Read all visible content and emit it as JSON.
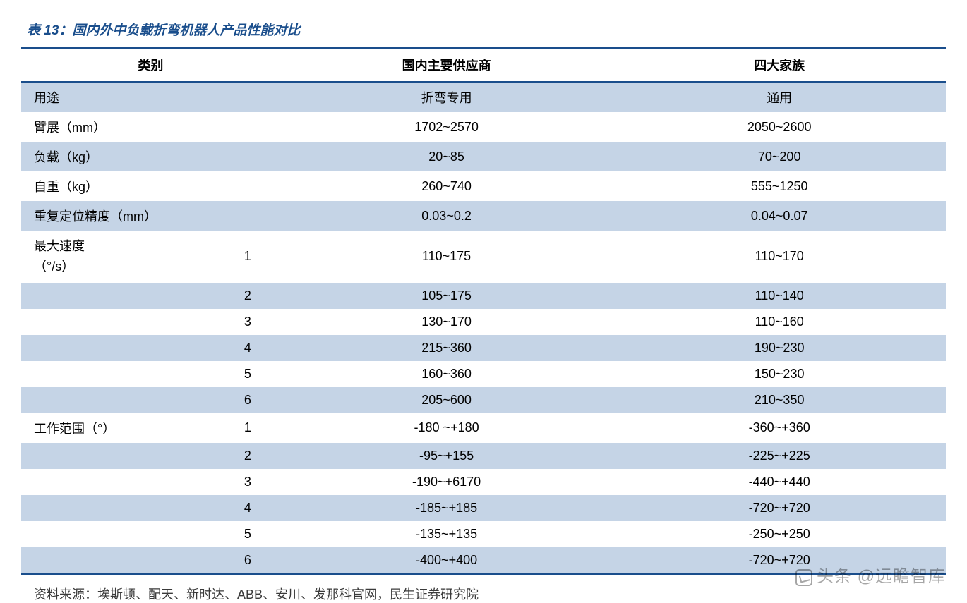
{
  "title": "表 13：国内外中负载折弯机器人产品性能对比",
  "columns": [
    "类别",
    "国内主要供应商",
    "四大家族"
  ],
  "band_colors": {
    "blue": "#c5d4e6",
    "white": "#ffffff"
  },
  "title_color": "#1a4e8c",
  "border_color": "#1a4e8c",
  "rows": [
    {
      "label": "用途",
      "sub": "",
      "c1": "折弯专用",
      "c2": "通用",
      "band": "blue"
    },
    {
      "label": "臂展（mm）",
      "sub": "",
      "c1": "1702~2570",
      "c2": "2050~2600",
      "band": "white"
    },
    {
      "label": "负载（kg）",
      "sub": "",
      "c1": "20~85",
      "c2": "70~200",
      "band": "blue"
    },
    {
      "label": "自重（kg）",
      "sub": "",
      "c1": "260~740",
      "c2": "555~1250",
      "band": "white"
    },
    {
      "label": "重复定位精度（mm）",
      "sub": "",
      "c1": "0.03~0.2",
      "c2": "0.04~0.07",
      "band": "blue"
    },
    {
      "label_line1": "最大速度",
      "label_line2": "（°/s）",
      "sub": "1",
      "c1": "110~175",
      "c2": "110~170",
      "band": "white",
      "twoLine": true
    },
    {
      "label": "",
      "sub": "2",
      "c1": "105~175",
      "c2": "110~140",
      "band": "blue"
    },
    {
      "label": "",
      "sub": "3",
      "c1": "130~170",
      "c2": "110~160",
      "band": "white"
    },
    {
      "label": "",
      "sub": "4",
      "c1": "215~360",
      "c2": "190~230",
      "band": "blue"
    },
    {
      "label": "",
      "sub": "5",
      "c1": "160~360",
      "c2": "150~230",
      "band": "white"
    },
    {
      "label": "",
      "sub": "6",
      "c1": "205~600",
      "c2": "210~350",
      "band": "blue"
    },
    {
      "label": "工作范围（°）",
      "sub": "1",
      "c1": "-180 ~+180",
      "c2": "-360~+360",
      "band": "white"
    },
    {
      "label": "",
      "sub": "2",
      "c1": "-95~+155",
      "c2": "-225~+225",
      "band": "blue"
    },
    {
      "label": "",
      "sub": "3",
      "c1": "-190~+6170",
      "c2": "-440~+440",
      "band": "white"
    },
    {
      "label": "",
      "sub": "4",
      "c1": "-185~+185",
      "c2": "-720~+720",
      "band": "blue"
    },
    {
      "label": "",
      "sub": "5",
      "c1": "-135~+135",
      "c2": "-250~+250",
      "band": "white"
    },
    {
      "label": "",
      "sub": "6",
      "c1": "-400~+400",
      "c2": "-720~+720",
      "band": "blue"
    }
  ],
  "source": "资料来源：埃斯顿、配天、新时达、ABB、安川、发那科官网，民生证券研究院",
  "watermark": "头条 @远瞻智库"
}
